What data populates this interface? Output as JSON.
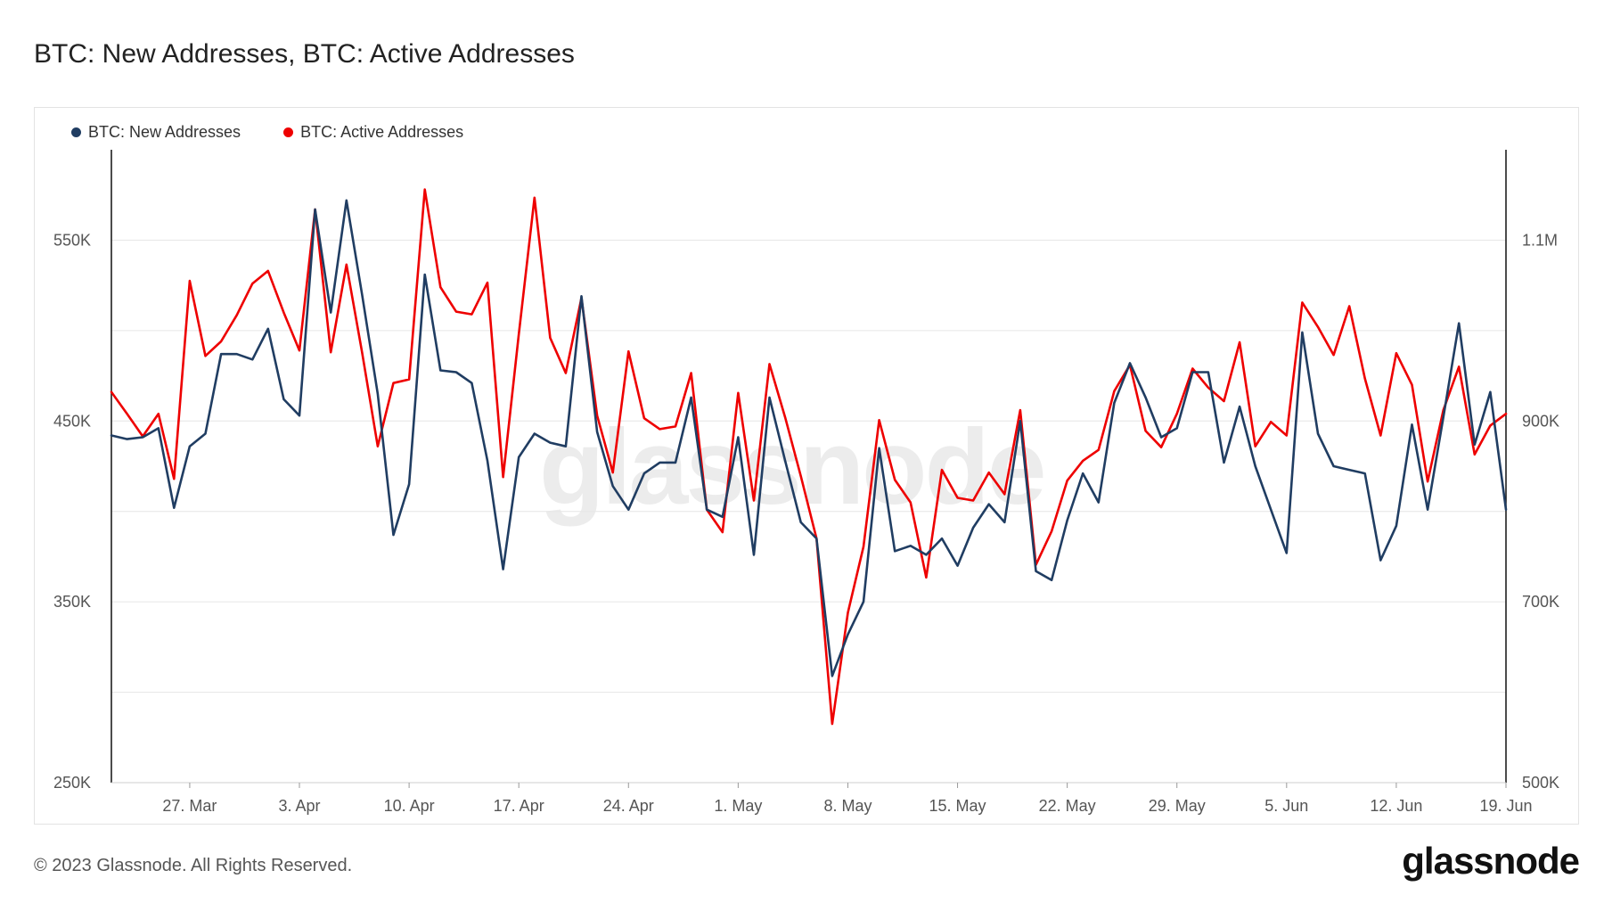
{
  "title": "BTC: New Addresses, BTC: Active Addresses",
  "footer": "© 2023 Glassnode. All Rights Reserved.",
  "brand": "glassnode",
  "watermark": "glassnode",
  "colors": {
    "new": "#203d62",
    "active": "#ee0000",
    "grid": "#e6e6e6"
  },
  "chart_data": {
    "type": "line",
    "x_tick_labels": [
      "27. Mar",
      "3. Apr",
      "10. Apr",
      "17. Apr",
      "24. Apr",
      "1. May",
      "8. May",
      "15. May",
      "22. May",
      "29. May",
      "5. Jun",
      "12. Jun",
      "19. Jun"
    ],
    "y_left": {
      "ylim": [
        250000,
        600000
      ],
      "tick_values": [
        250000,
        350000,
        450000,
        550000
      ],
      "tick_labels": [
        "250K",
        "350K",
        "450K",
        "550K"
      ]
    },
    "y_right": {
      "ylim": [
        500000,
        1200000
      ],
      "tick_values": [
        500000,
        700000,
        900000,
        1100000
      ],
      "tick_labels": [
        "500K",
        "700K",
        "900K",
        "1.1M"
      ]
    },
    "grid": true,
    "legend": "top-left",
    "series": [
      {
        "name": "BTC: New Addresses",
        "axis": "left",
        "color": "#203d62",
        "values": [
          442000,
          440000,
          441000,
          446000,
          402000,
          436000,
          443000,
          487000,
          487000,
          484000,
          501000,
          462000,
          453000,
          567000,
          510000,
          572000,
          520000,
          465000,
          387000,
          415000,
          531000,
          478000,
          477000,
          471000,
          428000,
          368000,
          430000,
          443000,
          438000,
          436000,
          519000,
          444000,
          414000,
          401000,
          421000,
          427000,
          427000,
          463000,
          401000,
          397000,
          441000,
          376000,
          463000,
          428000,
          394000,
          385000,
          309000,
          332000,
          350000,
          435000,
          378000,
          381000,
          376000,
          385000,
          370000,
          391000,
          404000,
          394000,
          450000,
          367000,
          362000,
          395000,
          421000,
          405000,
          460000,
          482000,
          463000,
          441000,
          446000,
          477000,
          477000,
          427000,
          458000,
          425000,
          401000,
          377000,
          499000,
          443000,
          425000,
          423000,
          421000,
          373000,
          392000,
          448000,
          401000,
          452000,
          504000,
          437000,
          466000,
          401000
        ]
      },
      {
        "name": "BTC: Active Addresses",
        "axis": "right",
        "color": "#ee0000",
        "values": [
          932000,
          908000,
          883000,
          908000,
          836000,
          1055000,
          972000,
          988000,
          1017000,
          1052000,
          1066000,
          1020000,
          978000,
          1134000,
          976000,
          1073000,
          976000,
          872000,
          942000,
          946000,
          1156000,
          1048000,
          1021000,
          1018000,
          1053000,
          838000,
          996000,
          1147000,
          992000,
          953000,
          1036000,
          906000,
          843000,
          977000,
          903000,
          891000,
          894000,
          953000,
          802000,
          777000,
          931000,
          812000,
          963000,
          904000,
          839000,
          770000,
          565000,
          688000,
          761000,
          901000,
          835000,
          810000,
          727000,
          846000,
          815000,
          812000,
          843000,
          819000,
          912000,
          741000,
          778000,
          834000,
          856000,
          868000,
          933000,
          962000,
          889000,
          871000,
          908000,
          958000,
          937000,
          922000,
          987000,
          872000,
          899000,
          884000,
          1031000,
          1004000,
          973000,
          1027000,
          947000,
          884000,
          975000,
          940000,
          833000,
          912000,
          960000,
          863000,
          895000,
          908000
        ]
      }
    ]
  }
}
